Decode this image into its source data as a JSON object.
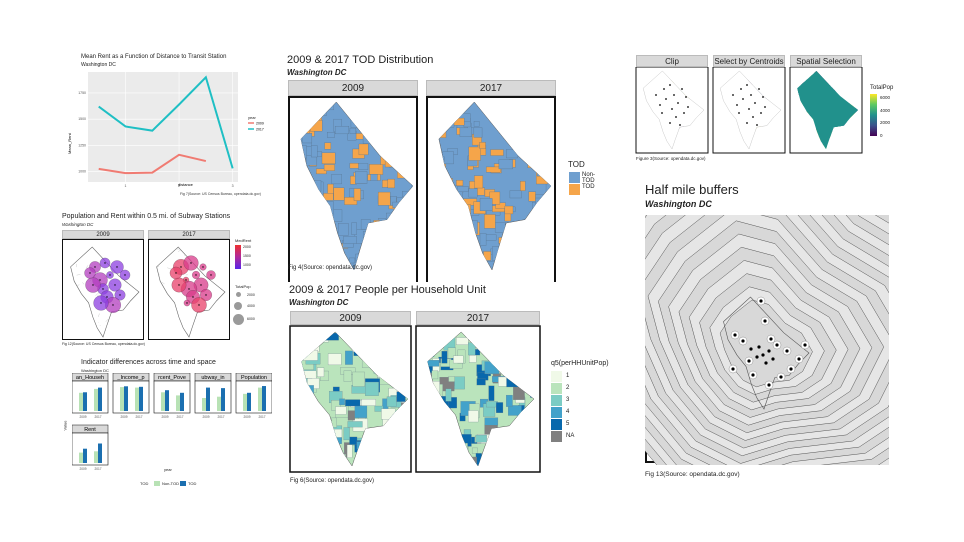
{
  "rent_chart": {
    "title": "Mean Rent as a Function of Distance to Transit Station",
    "subtitle": "Washington DC",
    "xlabel": "distance",
    "ylabel": "Mean_Rent",
    "legend_title": "year",
    "caption": "Fig 7(Source: US Census Bureau, opendata.dc.gov)",
    "colors": {
      "2009": "#f07b72",
      "2017": "#1fbfc4"
    }
  },
  "chart_data": {
    "type": "line",
    "title": "Mean Rent as a Function of Distance to Transit Station",
    "xlabel": "distance",
    "ylabel": "Mean_Rent",
    "x": [
      0.5,
      1.0,
      1.5,
      2.0,
      2.5,
      3.0
    ],
    "series": [
      {
        "name": "2009",
        "x": [
          0.5,
          1.0,
          1.5,
          2.0,
          2.5
        ],
        "values": [
          1025,
          985,
          990,
          1160,
          1100
        ]
      },
      {
        "name": "2017",
        "x": [
          0.5,
          1.0,
          1.5,
          2.0,
          2.5,
          3.0
        ],
        "values": [
          1620,
          1430,
          1390,
          1640,
          1900,
          1030
        ]
      }
    ],
    "ylim": [
      900,
      1950
    ],
    "legend": "right",
    "grid": true
  },
  "pop_rent": {
    "title": "Population and Rent within 0.5 mi. of Subway Stations",
    "subtitle": "Washington DC",
    "facets": [
      "2009",
      "2017"
    ],
    "legend1_title": "MedRent",
    "legend1_ticks": [
      "2000",
      "1500",
      "1000"
    ],
    "legend2_title": "TotalPop",
    "legend2_ticks": [
      "2000",
      "4000",
      "6000"
    ],
    "caption": "Fig 12(Source: US Census Bureau, opendata.dc.gov)"
  },
  "indicators": {
    "title": "Indicator differences across time and space",
    "subtitle": "Washington DC",
    "facets": [
      "an_Househ",
      "_Income_p",
      "rcent_Pove",
      "ubway_in",
      "Population",
      "Rent"
    ],
    "ylabel": "Value",
    "xlabel": "year",
    "x_ticks": [
      "2009",
      "2017"
    ],
    "legend_title": "TOD",
    "legend_items": [
      "Non-TOD",
      "TOD"
    ],
    "colors": {
      "non_tod": "#b8e2b5",
      "tod": "#1b6fb0"
    }
  },
  "tod": {
    "title": "2009 & 2017 TOD Distribution",
    "subtitle": "Washington DC",
    "facets": [
      "2009",
      "2017"
    ],
    "legend_title": "TOD",
    "legend_items": [
      "Non-TOD",
      "TOD"
    ],
    "caption": "Fig 4(Source: opendata.dc.gov)",
    "colors": {
      "non_tod": "#6f9fcf",
      "tod": "#f5a54a"
    }
  },
  "people": {
    "title": "2009 & 2017 People per Household Unit",
    "subtitle": "Washington DC",
    "facets": [
      "2009",
      "2017"
    ],
    "legend_title": "q5(perHHUnitPop)",
    "legend_items": [
      "1",
      "2",
      "3",
      "4",
      "5",
      "NA"
    ],
    "legend_colors": [
      "#f0f9e8",
      "#bae4bc",
      "#7bccc4",
      "#43a2ca",
      "#0868ac",
      "#808080"
    ],
    "caption": "Fig 6(Source: opendata.dc.gov)"
  },
  "clip": {
    "facets": [
      "Clip",
      "Select by Centroids",
      "Spatial Selection"
    ],
    "legend_title": "TotalPop",
    "legend_ticks": [
      "6000",
      "4000",
      "2000",
      "0"
    ],
    "caption": "Figure 3(Source: opendata.dc.gov)"
  },
  "buffers": {
    "title": "Half mile buffers",
    "subtitle": "Washington DC",
    "caption": "Fig 13(Source: opendata.dc.gov)"
  }
}
